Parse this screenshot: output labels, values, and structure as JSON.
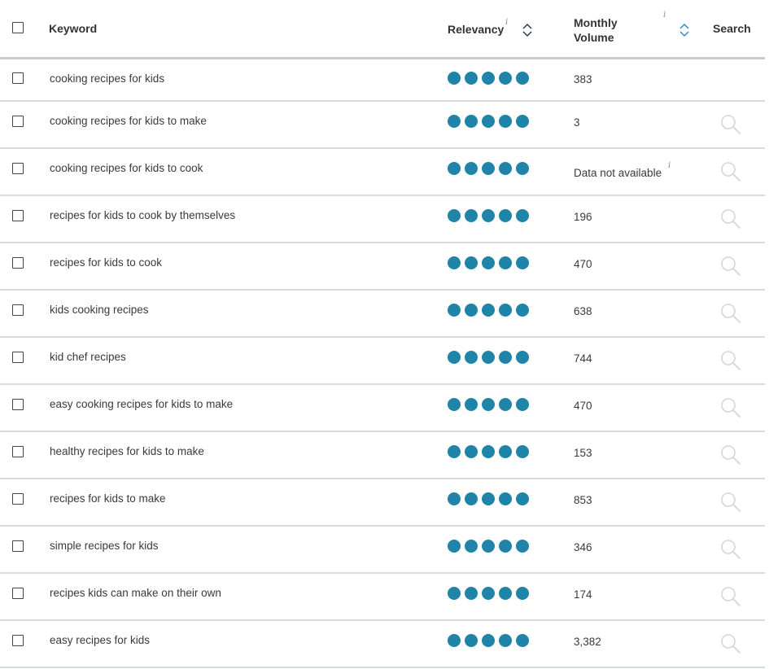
{
  "header": {
    "keyword": "Keyword",
    "relevancy": "Relevancy",
    "monthly": "Monthly",
    "volume": "Volume",
    "search": "Search",
    "info": "i"
  },
  "colors": {
    "relevancy_dot": "#1f84a8",
    "divider": "#d5dde1"
  },
  "rows": [
    {
      "keyword": "cooking recipes for kids",
      "relevancy": 5,
      "volume": "383",
      "search_icon": false
    },
    {
      "keyword": "cooking recipes for kids to make",
      "relevancy": 5,
      "volume": "3",
      "search_icon": true
    },
    {
      "keyword": "cooking recipes for kids to cook",
      "relevancy": 5,
      "volume": "Data not available",
      "volume_info": "i",
      "search_icon": true
    },
    {
      "keyword": "recipes for kids to cook by themselves",
      "relevancy": 5,
      "volume": "196",
      "search_icon": true
    },
    {
      "keyword": "recipes for kids to cook",
      "relevancy": 5,
      "volume": "470",
      "search_icon": true
    },
    {
      "keyword": "kids cooking recipes",
      "relevancy": 5,
      "volume": "638",
      "search_icon": true
    },
    {
      "keyword": "kid chef recipes",
      "relevancy": 5,
      "volume": "744",
      "search_icon": true
    },
    {
      "keyword": "easy cooking recipes for kids to make",
      "relevancy": 5,
      "volume": "470",
      "search_icon": true
    },
    {
      "keyword": "healthy recipes for kids to make",
      "relevancy": 5,
      "volume": "153",
      "search_icon": true
    },
    {
      "keyword": "recipes for kids to make",
      "relevancy": 5,
      "volume": "853",
      "search_icon": true
    },
    {
      "keyword": "simple recipes for kids",
      "relevancy": 5,
      "volume": "346",
      "search_icon": true
    },
    {
      "keyword": "recipes kids can make on their own",
      "relevancy": 5,
      "volume": "174",
      "search_icon": true
    },
    {
      "keyword": "easy recipes for kids",
      "relevancy": 5,
      "volume": "3,382",
      "search_icon": true
    }
  ]
}
